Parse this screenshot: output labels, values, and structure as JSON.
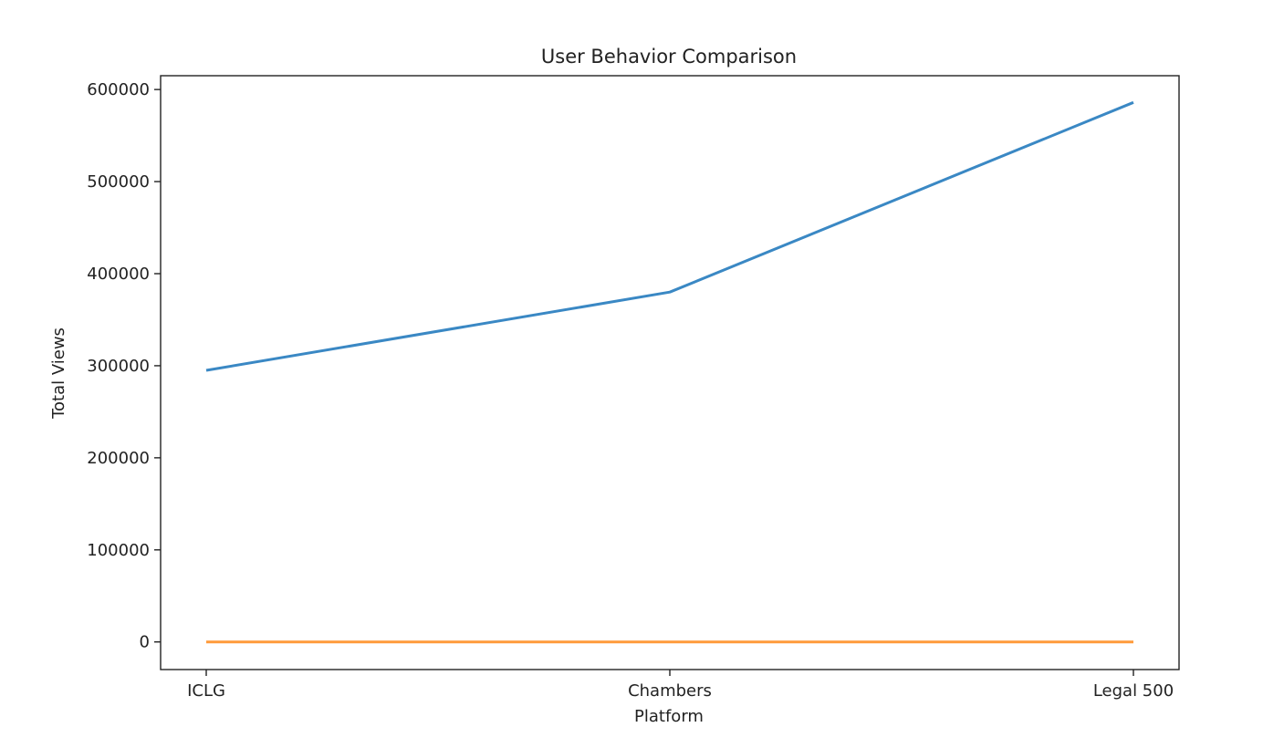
{
  "chart_data": {
    "type": "line",
    "title": "User Behavior Comparison",
    "xlabel": "Platform",
    "ylabel": "Total Views",
    "categories": [
      "ICLG",
      "Chambers",
      "Legal 500"
    ],
    "ylim": [
      -30000,
      615000
    ],
    "yticks": [
      0,
      100000,
      200000,
      300000,
      400000,
      500000,
      600000
    ],
    "ytick_labels": [
      "0",
      "100000",
      "200000",
      "300000",
      "400000",
      "500000",
      "600000"
    ],
    "grid": false,
    "series": [
      {
        "color": "#3a88c4",
        "values": [
          295000,
          380000,
          586000
        ]
      },
      {
        "color": "#ff9a3a",
        "values": [
          0,
          0,
          0
        ]
      }
    ]
  }
}
